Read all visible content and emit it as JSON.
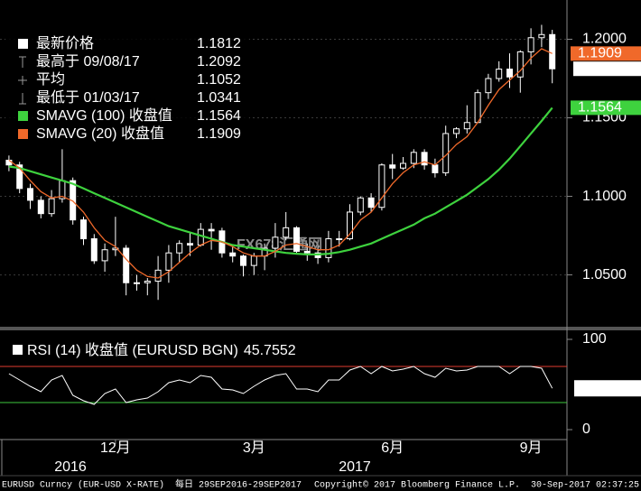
{
  "chart_data": [
    {
      "type": "candlestick",
      "name": "最新价格",
      "open": [
        1.123,
        1.12,
        1.105,
        1.0975,
        1.089,
        1.0985,
        1.11,
        1.085,
        1.073,
        1.059,
        1.066,
        1.067,
        1.045,
        1.045,
        1.046,
        1.053,
        1.064,
        1.07,
        1.069,
        1.079,
        1.078,
        1.064,
        1.062,
        1.056,
        1.062,
        1.067,
        1.074,
        1.08,
        1.065,
        1.064,
        1.061,
        1.073,
        1.073,
        1.09,
        1.099,
        1.093,
        1.12,
        1.118,
        1.121,
        1.128,
        1.12,
        1.115,
        1.14,
        1.143,
        1.147,
        1.166,
        1.175,
        1.181,
        1.176,
        1.192,
        1.201,
        1.203
      ],
      "high": [
        1.126,
        1.122,
        1.108,
        1.1,
        1.104,
        1.13,
        1.112,
        1.087,
        1.076,
        1.07,
        1.087,
        1.069,
        1.05,
        1.048,
        1.062,
        1.069,
        1.072,
        1.077,
        1.083,
        1.083,
        1.08,
        1.068,
        1.063,
        1.064,
        1.07,
        1.083,
        1.09,
        1.081,
        1.07,
        1.068,
        1.078,
        1.078,
        1.095,
        1.1,
        1.102,
        1.121,
        1.127,
        1.125,
        1.13,
        1.13,
        1.124,
        1.145,
        1.144,
        1.158,
        1.168,
        1.178,
        1.186,
        1.191,
        1.193,
        1.207,
        1.2092,
        1.206
      ],
      "low": [
        1.116,
        1.102,
        1.092,
        1.086,
        1.087,
        1.096,
        1.082,
        1.069,
        1.057,
        1.052,
        1.062,
        1.037,
        1.04,
        1.037,
        1.0341,
        1.045,
        1.058,
        1.062,
        1.068,
        1.066,
        1.061,
        1.058,
        1.049,
        1.05,
        1.053,
        1.061,
        1.072,
        1.063,
        1.059,
        1.057,
        1.058,
        1.068,
        1.072,
        1.088,
        1.09,
        1.091,
        1.111,
        1.117,
        1.118,
        1.117,
        1.112,
        1.113,
        1.137,
        1.14,
        1.147,
        1.162,
        1.173,
        1.169,
        1.166,
        1.184,
        1.195,
        1.172
      ],
      "close": [
        1.12,
        1.105,
        1.0975,
        1.089,
        1.0985,
        1.11,
        1.085,
        1.073,
        1.059,
        1.066,
        1.067,
        1.045,
        1.045,
        1.046,
        1.053,
        1.064,
        1.07,
        1.069,
        1.079,
        1.078,
        1.064,
        1.062,
        1.056,
        1.062,
        1.067,
        1.074,
        1.08,
        1.065,
        1.064,
        1.061,
        1.073,
        1.073,
        1.09,
        1.099,
        1.093,
        1.12,
        1.118,
        1.121,
        1.128,
        1.12,
        1.115,
        1.14,
        1.143,
        1.147,
        1.166,
        1.175,
        1.181,
        1.176,
        1.192,
        1.201,
        1.203,
        1.1812
      ],
      "series": [
        {
          "name": "SMAVG (100) 收盘值",
          "color": "#3ed23e",
          "values": [
            1.119,
            1.118,
            1.116,
            1.114,
            1.112,
            1.11,
            1.108,
            1.105,
            1.102,
            1.099,
            1.096,
            1.093,
            1.09,
            1.087,
            1.084,
            1.081,
            1.079,
            1.077,
            1.075,
            1.073,
            1.071,
            1.069,
            1.068,
            1.067,
            1.066,
            1.065,
            1.064,
            1.0635,
            1.063,
            1.063,
            1.0635,
            1.0645,
            1.066,
            1.068,
            1.07,
            1.073,
            1.076,
            1.079,
            1.082,
            1.086,
            1.089,
            1.093,
            1.097,
            1.101,
            1.106,
            1.111,
            1.117,
            1.124,
            1.132,
            1.14,
            1.148,
            1.1564
          ]
        },
        {
          "name": "SMAVG (20) 收盘值",
          "color": "#f0692a",
          "values": [
            1.123,
            1.118,
            1.11,
            1.103,
            1.099,
            1.1,
            1.097,
            1.09,
            1.08,
            1.072,
            1.068,
            1.06,
            1.053,
            1.049,
            1.048,
            1.052,
            1.058,
            1.064,
            1.069,
            1.072,
            1.071,
            1.068,
            1.064,
            1.062,
            1.062,
            1.065,
            1.069,
            1.07,
            1.068,
            1.066,
            1.066,
            1.069,
            1.076,
            1.085,
            1.09,
            1.099,
            1.108,
            1.115,
            1.12,
            1.122,
            1.12,
            1.126,
            1.133,
            1.138,
            1.147,
            1.158,
            1.168,
            1.174,
            1.18,
            1.188,
            1.194,
            1.1909
          ]
        }
      ],
      "stats": [
        {
          "name": "最高于 09/08/17",
          "value": 1.2092
        },
        {
          "name": "平均",
          "value": 1.1052
        },
        {
          "name": "最低于 01/03/17",
          "value": 1.0341
        }
      ],
      "ylim": [
        1.017,
        1.225
      ],
      "yticks": [
        {
          "value": 1.05,
          "label": "1.0500"
        },
        {
          "value": 1.1,
          "label": "1.1000"
        },
        {
          "value": 1.15,
          "label": "1.1500"
        },
        {
          "value": 1.2,
          "label": "1.2000"
        }
      ],
      "grid": true,
      "watermark": "FX678汇通网"
    },
    {
      "type": "line",
      "name": "RSI (14) 收盘值 (EURUSD BGN)",
      "color": "#ffffff",
      "categories": [
        null,
        null,
        null,
        null,
        null,
        null,
        null,
        null,
        null,
        null,
        "12月",
        null,
        null,
        null,
        null,
        null,
        null,
        null,
        null,
        null,
        null,
        null,
        null,
        "3月",
        null,
        null,
        null,
        null,
        null,
        null,
        null,
        null,
        null,
        null,
        null,
        null,
        "6月",
        null,
        null,
        null,
        null,
        null,
        null,
        null,
        null,
        null,
        null,
        null,
        null,
        "9月",
        null,
        null
      ],
      "values": [
        62,
        55,
        48,
        42,
        55,
        60,
        38,
        32,
        28,
        40,
        45,
        30,
        33,
        35,
        42,
        52,
        55,
        52,
        60,
        58,
        45,
        44,
        40,
        48,
        55,
        60,
        62,
        45,
        45,
        42,
        55,
        55,
        66,
        70,
        62,
        70,
        65,
        67,
        70,
        62,
        58,
        68,
        65,
        66,
        70,
        70,
        70,
        62,
        70,
        70,
        68,
        45.7552
      ],
      "ref_lines": [
        {
          "value": 70,
          "color": "#e03c31"
        },
        {
          "value": 30,
          "color": "#3ec93e"
        }
      ],
      "ylim": [
        -9,
        110
      ],
      "yticks": [
        0,
        100
      ],
      "x_group_labels": [
        "2016",
        "2017"
      ]
    }
  ],
  "footer": {
    "source": "EURUSD Curncy (EUR-USD X-RATE)",
    "range": "每日 29SEP2016-29SEP2017",
    "copyright": "Copyright© 2017 Bloomberg Finance L.P.",
    "timestamp": "30-Sep-2017 02:37:25"
  }
}
